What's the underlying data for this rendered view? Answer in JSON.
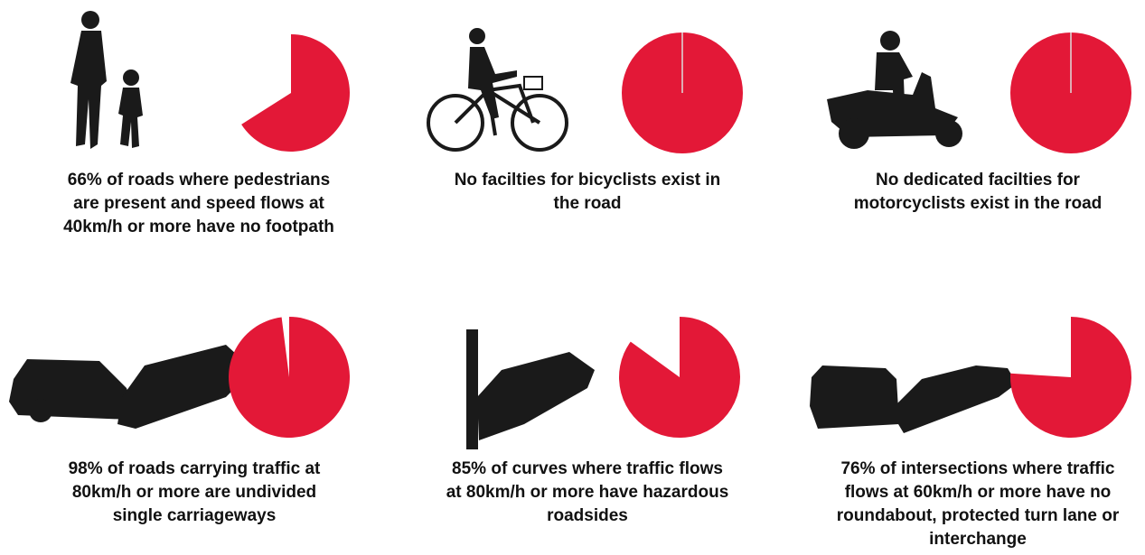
{
  "chart_data": [
    {
      "type": "pie",
      "values": [
        66
      ],
      "color": "#e31837",
      "caption": [
        "66% of roads where pedestrians",
        "are present and speed flows at",
        "40km/h or more have no footpath"
      ]
    },
    {
      "type": "pie",
      "values": [
        100
      ],
      "color": "#e31837",
      "caption": [
        "No facilties for bicyclists exist in",
        "the road"
      ]
    },
    {
      "type": "pie",
      "values": [
        100
      ],
      "color": "#e31837",
      "caption": [
        "No dedicated facilties for",
        "motorcyclists exist in the road"
      ]
    },
    {
      "type": "pie",
      "values": [
        98
      ],
      "color": "#e31837",
      "caption": [
        "98% of roads carrying traffic at",
        "80km/h or more are undivided",
        "single carriageways"
      ]
    },
    {
      "type": "pie",
      "values": [
        85
      ],
      "color": "#e31837",
      "caption": [
        "85% of curves where traffic flows",
        "at 80km/h or more have hazardous",
        "roadsides"
      ]
    },
    {
      "type": "pie",
      "values": [
        76
      ],
      "color": "#e31837",
      "caption": [
        "76% of intersections where traffic",
        "flows at 60km/h or more have no",
        "roundabout, protected turn lane or",
        "interchange"
      ]
    }
  ]
}
